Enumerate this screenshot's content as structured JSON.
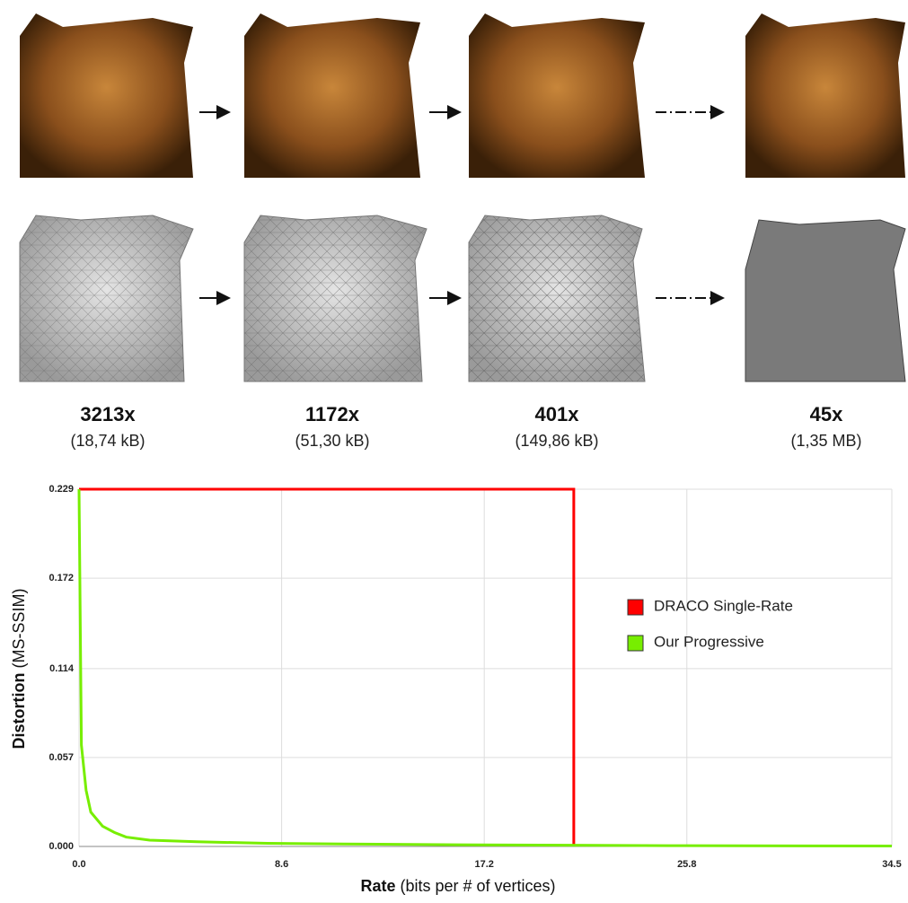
{
  "figure": {
    "stages": [
      {
        "ratio": "3213x",
        "size": "(18,74 kB)"
      },
      {
        "ratio": "1172x",
        "size": "(51,30 kB)"
      },
      {
        "ratio": "401x",
        "size": "(149,86 kB)"
      },
      {
        "ratio": "45x",
        "size": "(1,35 MB)"
      }
    ]
  },
  "chart_data": {
    "type": "line",
    "x_label": "Rate",
    "x_label_note": "(bits per # of vertices)",
    "y_label": "Distortion",
    "y_label_note": "(MS-SSIM)",
    "xlim": [
      0,
      34.5
    ],
    "xticks": [
      {
        "value": 0,
        "label": "0.0"
      },
      8.6,
      17.2,
      25.8,
      34.5
    ],
    "ylim": [
      0,
      0.229
    ],
    "yticks": [
      {
        "value": 0,
        "label": "0.000"
      },
      0.057,
      0.114,
      0.172,
      0.229
    ],
    "grid": true,
    "legend": "right",
    "series": [
      {
        "name": "DRACO Single-Rate",
        "color": "#ff0000",
        "x": [
          0,
          21.0,
          21.0
        ],
        "values": [
          0.229,
          0.229,
          0
        ]
      },
      {
        "name": "Our Progressive",
        "color": "#77ee00",
        "x": [
          0,
          0.1,
          0.3,
          0.5,
          1,
          1.5,
          2,
          3,
          5,
          8,
          12,
          17,
          25,
          34.5
        ],
        "values": [
          0.229,
          0.065,
          0.036,
          0.022,
          0.013,
          0.009,
          0.006,
          0.004,
          0.003,
          0.002,
          0.0015,
          0.001,
          0.0005,
          0.0003
        ]
      }
    ]
  }
}
